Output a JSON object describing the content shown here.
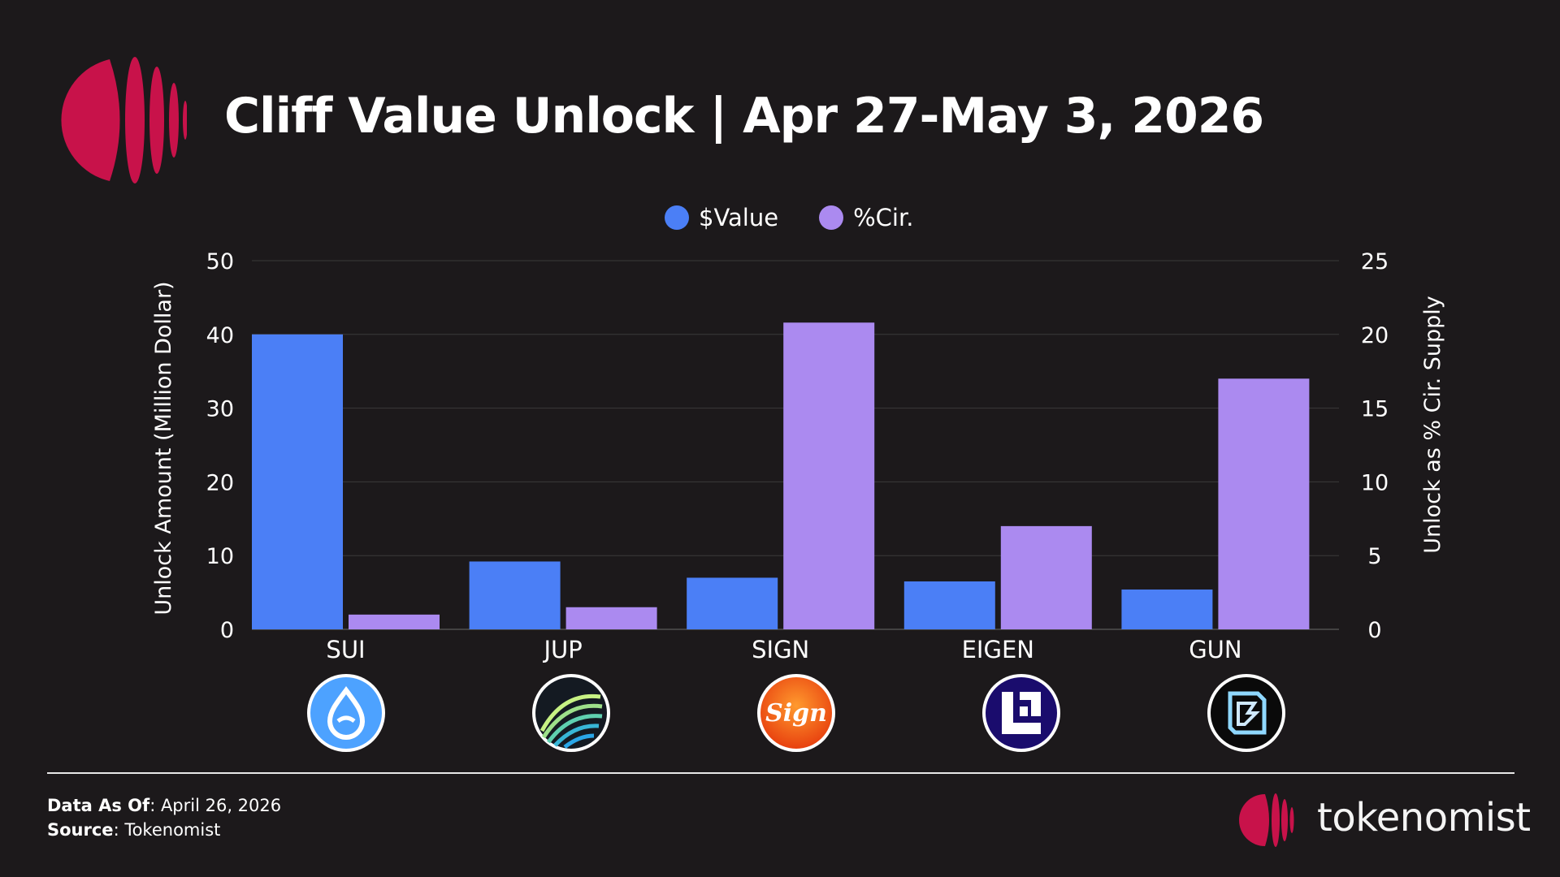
{
  "header": {
    "title": "Cliff Value Unlock | Apr 27-May 3, 2026",
    "logo_icon": "tokenomist-logo-icon"
  },
  "legend": {
    "items": [
      {
        "label": "$Value",
        "color": "#4b7ff6"
      },
      {
        "label": "%Cir.",
        "color": "#ab8af0"
      }
    ]
  },
  "chart_data": {
    "type": "bar",
    "title": "Cliff Value Unlock | Apr 27-May 3, 2026",
    "categories": [
      "SUI",
      "JUP",
      "SIGN",
      "EIGEN",
      "GUN"
    ],
    "series": [
      {
        "name": "$Value",
        "axis": "left",
        "color": "#4b7ff6",
        "values": [
          40.0,
          9.2,
          7.0,
          6.5,
          5.4
        ]
      },
      {
        "name": "%Cir.",
        "axis": "right",
        "color": "#ab8af0",
        "values": [
          1.0,
          1.5,
          20.8,
          7.0,
          17.0
        ]
      }
    ],
    "ylabel": "Unlock Amount (Million Dollar)",
    "ylabel_right": "Unlock as % Cir. Supply",
    "ylim": [
      0,
      50
    ],
    "ylim_right": [
      0,
      25
    ],
    "yticks": [
      0,
      10,
      20,
      30,
      40,
      50
    ],
    "yticks_right": [
      0,
      5,
      10,
      15,
      20,
      25
    ],
    "grid": true,
    "legend_position": "top-center"
  },
  "tokens": [
    {
      "symbol": "SUI",
      "icon": "sui-droplet-icon",
      "color": "#4da2ff"
    },
    {
      "symbol": "JUP",
      "icon": "jupiter-rings-icon",
      "color": "#141a22"
    },
    {
      "symbol": "SIGN",
      "icon": "sign-script-icon",
      "color": "#f26b1d",
      "icon_text": "Sign"
    },
    {
      "symbol": "EIGEN",
      "icon": "eigen-blocks-icon",
      "color": "#1a0c6d"
    },
    {
      "symbol": "GUN",
      "icon": "gun-cube-icon",
      "color": "#0a0a0a"
    }
  ],
  "footer": {
    "data_as_of_label": "Data As Of",
    "data_as_of_value": ": April 26, 2026",
    "source_label": "Source",
    "source_value": ": Tokenomist",
    "brand_name": "tokenomist",
    "brand_icon": "tokenomist-brand-icon"
  },
  "colors": {
    "background": "#1c191b",
    "accent": "#c8124a",
    "grid": "#3a3a3a"
  }
}
